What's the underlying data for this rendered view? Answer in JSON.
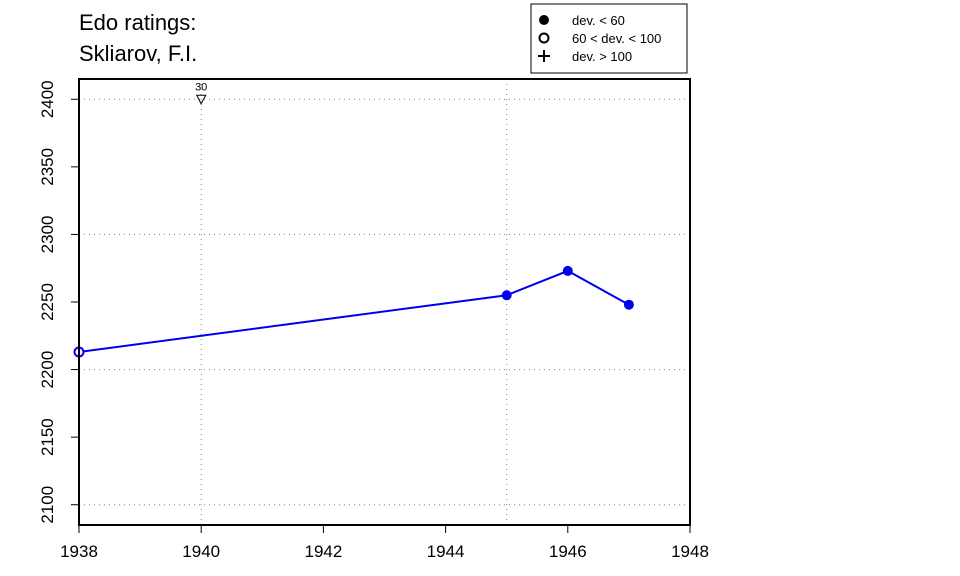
{
  "title": {
    "line1": "Edo ratings:",
    "line2": "Skliarov, F.I."
  },
  "legend": {
    "placement": "top-right",
    "items": [
      {
        "label": "dev. < 60",
        "marker": "filled-circle"
      },
      {
        "label": "60 < dev. < 100",
        "marker": "open-circle"
      },
      {
        "label": "dev. > 100",
        "marker": "plus"
      }
    ]
  },
  "chart_data": {
    "type": "line",
    "xlim": [
      1938,
      1948
    ],
    "ylim": [
      2085,
      2415
    ],
    "x_ticks": [
      1938,
      1940,
      1942,
      1944,
      1946,
      1948
    ],
    "y_ticks": [
      2100,
      2150,
      2200,
      2250,
      2300,
      2350,
      2400
    ],
    "x_grid": [
      1940,
      1945
    ],
    "y_grid": [
      2100,
      2200,
      2300,
      2400
    ],
    "grid": "dotted",
    "series": [
      {
        "color": "#0000ee",
        "points": [
          {
            "x": 1938,
            "y": 2213,
            "marker": "open-circle"
          },
          {
            "x": 1945,
            "y": 2255,
            "marker": "filled-circle"
          },
          {
            "x": 1946,
            "y": 2273,
            "marker": "filled-circle"
          },
          {
            "x": 1947,
            "y": 2248,
            "marker": "filled-circle"
          }
        ]
      }
    ],
    "annotations": [
      {
        "x": 1940,
        "y": 2400,
        "label": "30",
        "marker": "open-triangle-down"
      }
    ]
  }
}
